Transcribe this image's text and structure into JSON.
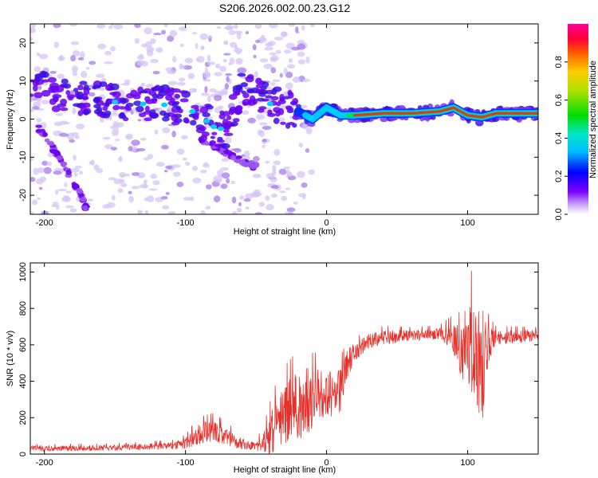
{
  "title": "S206.2026.002.00.23.G12",
  "colors": {
    "signal": "#e8302a",
    "blob_low": "#d6c4f5",
    "blob_mid": "#6a00ee",
    "ridge_core": "#e8302a"
  },
  "chart_data": [
    {
      "type": "heatmap",
      "name": "spectrogram",
      "xlabel": "Height of straight line (km)",
      "ylabel": "Frequency (Hz)",
      "xlim": [
        -210,
        150
      ],
      "ylim": [
        -25,
        25
      ],
      "xticks": [
        -200,
        -100,
        0,
        100
      ],
      "yticks": [
        -20,
        -10,
        0,
        10,
        20
      ],
      "xtick_labels": [
        "-200",
        "-100",
        "0",
        "100"
      ],
      "ytick_labels": [
        "-20",
        "-10",
        "0",
        "10",
        "20"
      ],
      "ridge": {
        "x": [
          -210,
          -180,
          -160,
          -140,
          -120,
          -100,
          -90,
          -80,
          -70,
          -60,
          -50,
          -40,
          -30,
          -20,
          -10,
          0,
          10,
          20,
          40,
          60,
          80,
          90,
          100,
          110,
          120,
          150
        ],
        "y": [
          8,
          6,
          5,
          4,
          4,
          3,
          1,
          -2,
          -3,
          9,
          6,
          4,
          3,
          2,
          0,
          3,
          1,
          1,
          1.5,
          1.5,
          2,
          3,
          1,
          0.5,
          1.5,
          1.5
        ]
      },
      "branches": [
        {
          "x": [
            -205,
            -195,
            -185,
            -175,
            -170
          ],
          "y": [
            -2,
            -7,
            -13,
            -19,
            -24
          ]
        },
        {
          "x": [
            -90,
            -75,
            -60,
            -48
          ],
          "y": [
            -5,
            -8,
            -11,
            -13
          ]
        }
      ],
      "colorbar": {
        "label": "Normalized spectral amplitude",
        "range": [
          0,
          1
        ],
        "ticks": [
          0.0,
          0.2,
          0.4,
          0.6,
          0.8
        ],
        "tick_labels": [
          "0.0",
          "0.2",
          "0.4",
          "0.6",
          "0.8"
        ]
      }
    },
    {
      "type": "line",
      "name": "snr",
      "xlabel": "Height of straight line (km)",
      "ylabel": "SNR (10 * v/v)",
      "xlim": [
        -210,
        150
      ],
      "ylim": [
        0,
        1050
      ],
      "xticks": [
        -200,
        -100,
        0,
        100
      ],
      "yticks": [
        0,
        200,
        400,
        600,
        800,
        1000
      ],
      "xtick_labels": [
        "-200",
        "-100",
        "0",
        "100"
      ],
      "ytick_labels": [
        "0",
        "200",
        "400",
        "600",
        "800",
        "1000"
      ],
      "envelope": {
        "x": [
          -210,
          -150,
          -110,
          -100,
          -90,
          -80,
          -70,
          -60,
          -50,
          -45,
          -40,
          -35,
          -30,
          -25,
          -20,
          -15,
          -10,
          -5,
          0,
          5,
          10,
          15,
          20,
          30,
          40,
          60,
          80,
          90,
          95,
          100,
          105,
          110,
          115,
          120,
          150
        ],
        "mean": [
          30,
          35,
          45,
          60,
          110,
          130,
          90,
          55,
          45,
          60,
          100,
          170,
          210,
          240,
          260,
          280,
          300,
          320,
          340,
          300,
          350,
          500,
          560,
          620,
          640,
          650,
          660,
          640,
          560,
          600,
          520,
          480,
          600,
          640,
          650
        ],
        "spread": [
          15,
          15,
          20,
          30,
          60,
          60,
          50,
          30,
          30,
          50,
          120,
          150,
          170,
          180,
          200,
          200,
          160,
          150,
          140,
          140,
          120,
          80,
          50,
          40,
          40,
          30,
          30,
          80,
          140,
          260,
          300,
          330,
          100,
          40,
          30
        ]
      }
    }
  ]
}
